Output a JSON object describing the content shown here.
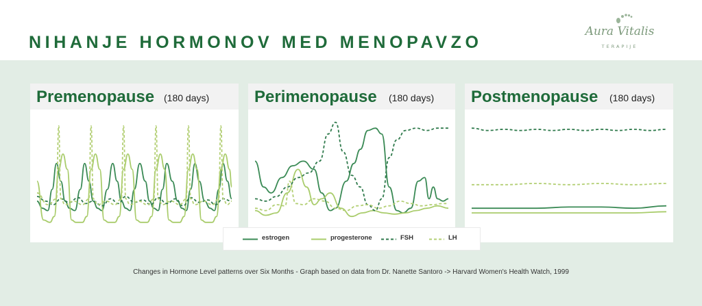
{
  "title": "NIHANJE HORMONOV MED MENOPAVZO",
  "logo": {
    "name": "Aura Vitalis",
    "tagline": "TERAPIJE",
    "icon": "footprint-icon"
  },
  "colors": {
    "estrogen": "#3a8a55",
    "progesterone": "#a9cc6b",
    "fsh": "#2f7a4c",
    "lh": "#b3cf74",
    "title": "#1f6b3a",
    "band": "#e2ede5"
  },
  "legend": [
    {
      "key": "estrogen",
      "label": "estrogen",
      "style": "solid"
    },
    {
      "key": "progesterone",
      "label": "progesterone",
      "style": "solid"
    },
    {
      "key": "fsh",
      "label": "FSH",
      "style": "dashed"
    },
    {
      "key": "lh",
      "label": "LH",
      "style": "dashed"
    }
  ],
  "caption": "Changes in Hormone Level patterns over Six Months - Graph based on data from Dr. Nanette Santoro -> Harvard Women's Health Watch, 1999",
  "chart_data": [
    {
      "type": "line",
      "title": "Premenopause",
      "subtitle": "(180 days)",
      "xlim": [
        0,
        180
      ],
      "ylim": [
        0,
        100
      ],
      "grid": false,
      "axes_visible": false,
      "series": [
        {
          "name": "estrogen",
          "style": "solid",
          "x": [
            0,
            5,
            10,
            14,
            18,
            22,
            26,
            30,
            35,
            40,
            44,
            48,
            52,
            56,
            60,
            65,
            70,
            74,
            78,
            82,
            86,
            90,
            95,
            100,
            104,
            108,
            112,
            116,
            120,
            125,
            130,
            134,
            138,
            142,
            146,
            150,
            155,
            160,
            164,
            168,
            172,
            176,
            180
          ],
          "y": [
            28,
            22,
            20,
            38,
            60,
            45,
            28,
            22,
            20,
            38,
            60,
            45,
            28,
            22,
            20,
            38,
            60,
            45,
            28,
            22,
            20,
            38,
            60,
            45,
            28,
            22,
            20,
            38,
            60,
            45,
            28,
            22,
            20,
            38,
            60,
            45,
            28,
            22,
            20,
            38,
            60,
            45,
            30
          ]
        },
        {
          "name": "progesterone",
          "style": "solid",
          "x": [
            0,
            6,
            12,
            16,
            20,
            24,
            28,
            32,
            36,
            42,
            46,
            50,
            54,
            58,
            62,
            66,
            72,
            76,
            80,
            84,
            88,
            92,
            96,
            102,
            106,
            110,
            114,
            118,
            122,
            126,
            132,
            136,
            140,
            144,
            148,
            152,
            156,
            162,
            166,
            170,
            174,
            178,
            180
          ],
          "y": [
            45,
            12,
            10,
            15,
            55,
            68,
            55,
            12,
            10,
            10,
            15,
            55,
            68,
            55,
            12,
            10,
            10,
            15,
            55,
            68,
            55,
            12,
            10,
            10,
            15,
            55,
            68,
            55,
            12,
            10,
            10,
            15,
            55,
            68,
            55,
            12,
            10,
            10,
            15,
            55,
            68,
            55,
            40
          ]
        },
        {
          "name": "FSH",
          "style": "dashed",
          "x": [
            0,
            8,
            15,
            22,
            30,
            38,
            45,
            52,
            60,
            68,
            75,
            82,
            90,
            98,
            105,
            112,
            120,
            128,
            135,
            142,
            150,
            158,
            165,
            172,
            180
          ],
          "y": [
            32,
            28,
            25,
            30,
            27,
            31,
            26,
            28,
            24,
            30,
            26,
            32,
            27,
            29,
            25,
            31,
            26,
            30,
            24,
            31,
            27,
            29,
            25,
            30,
            28
          ]
        },
        {
          "name": "LH",
          "style": "dashed",
          "x": [
            0,
            10,
            18,
            20,
            22,
            26,
            34,
            42,
            48,
            50,
            52,
            56,
            64,
            72,
            78,
            80,
            82,
            86,
            94,
            102,
            108,
            110,
            112,
            116,
            124,
            132,
            138,
            140,
            142,
            146,
            154,
            162,
            168,
            170,
            172,
            176,
            180
          ],
          "y": [
            35,
            25,
            30,
            92,
            30,
            25,
            28,
            25,
            30,
            92,
            30,
            25,
            28,
            25,
            30,
            92,
            30,
            25,
            28,
            25,
            30,
            92,
            30,
            25,
            28,
            25,
            30,
            92,
            30,
            25,
            28,
            25,
            30,
            92,
            30,
            25,
            28
          ]
        }
      ]
    },
    {
      "type": "line",
      "title": "Perimenopause",
      "subtitle": "(180 days)",
      "xlim": [
        0,
        180
      ],
      "ylim": [
        0,
        100
      ],
      "grid": false,
      "axes_visible": false,
      "series": [
        {
          "name": "estrogen",
          "style": "solid",
          "x": [
            0,
            8,
            15,
            25,
            35,
            45,
            55,
            62,
            70,
            75,
            85,
            92,
            98,
            105,
            112,
            118,
            125,
            132,
            138,
            145,
            152,
            158,
            162,
            166,
            170,
            175,
            180
          ],
          "y": [
            62,
            40,
            35,
            48,
            58,
            62,
            55,
            35,
            20,
            22,
            45,
            60,
            72,
            88,
            90,
            85,
            40,
            20,
            18,
            22,
            45,
            48,
            30,
            40,
            30,
            28,
            30
          ]
        },
        {
          "name": "progesterone",
          "style": "solid",
          "x": [
            0,
            10,
            20,
            30,
            40,
            48,
            55,
            62,
            70,
            80,
            90,
            100,
            110,
            120,
            130,
            140,
            150,
            160,
            170,
            180
          ],
          "y": [
            20,
            16,
            18,
            35,
            55,
            40,
            25,
            30,
            35,
            22,
            15,
            18,
            20,
            18,
            17,
            18,
            20,
            22,
            24,
            22
          ]
        },
        {
          "name": "FSH",
          "style": "dashed",
          "x": [
            0,
            10,
            20,
            30,
            40,
            50,
            60,
            68,
            75,
            82,
            90,
            98,
            105,
            112,
            118,
            125,
            132,
            140,
            150,
            160,
            170,
            180
          ],
          "y": [
            30,
            28,
            32,
            40,
            48,
            52,
            62,
            85,
            95,
            70,
            50,
            40,
            25,
            20,
            30,
            65,
            80,
            88,
            90,
            88,
            90,
            90
          ]
        },
        {
          "name": "LH",
          "style": "dashed",
          "x": [
            0,
            10,
            20,
            28,
            32,
            38,
            45,
            55,
            65,
            75,
            85,
            95,
            105,
            115,
            125,
            135,
            145,
            155,
            165,
            175,
            180
          ],
          "y": [
            22,
            20,
            25,
            24,
            45,
            26,
            25,
            30,
            28,
            22,
            20,
            24,
            25,
            22,
            24,
            28,
            26,
            24,
            25,
            26,
            26
          ]
        }
      ]
    },
    {
      "type": "line",
      "title": "Postmenopause",
      "subtitle": "(180 days)",
      "xlim": [
        0,
        180
      ],
      "ylim": [
        0,
        100
      ],
      "grid": false,
      "axes_visible": false,
      "series": [
        {
          "name": "estrogen",
          "style": "solid",
          "x": [
            0,
            30,
            60,
            90,
            120,
            150,
            180
          ],
          "y": [
            22,
            22,
            22,
            23,
            23,
            22,
            24
          ]
        },
        {
          "name": "progesterone",
          "style": "solid",
          "x": [
            0,
            30,
            60,
            90,
            120,
            150,
            180
          ],
          "y": [
            18,
            18,
            18,
            18,
            18,
            18,
            19
          ]
        },
        {
          "name": "FSH",
          "style": "dashed",
          "x": [
            0,
            15,
            30,
            45,
            60,
            75,
            90,
            105,
            120,
            135,
            150,
            165,
            180
          ],
          "y": [
            90,
            88,
            89,
            88,
            89,
            88,
            89,
            88,
            89,
            88,
            89,
            88,
            89
          ]
        },
        {
          "name": "LH",
          "style": "dashed",
          "x": [
            0,
            30,
            60,
            90,
            120,
            150,
            180
          ],
          "y": [
            42,
            42,
            43,
            42,
            43,
            42,
            43
          ]
        }
      ]
    }
  ]
}
